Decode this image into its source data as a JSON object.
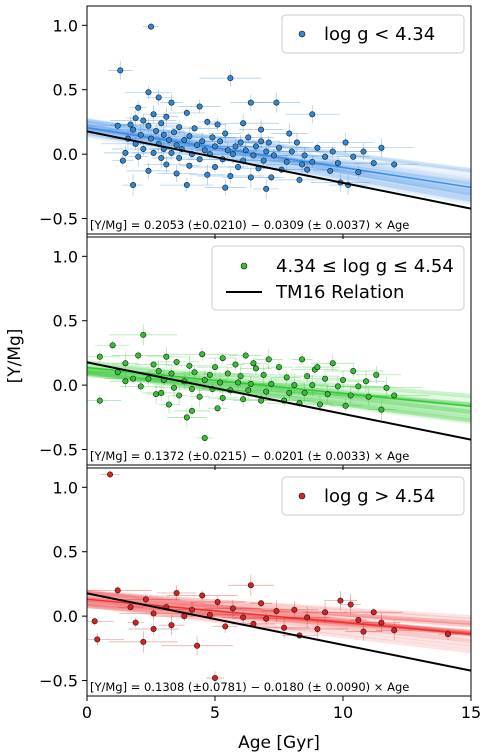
{
  "chart_data": {
    "type": "scatter",
    "xlabel": "Age [Gyr]",
    "ylabel": "[Y/Mg]",
    "xlim": [
      0,
      15
    ],
    "ylim": [
      -0.62,
      1.15
    ],
    "xticks": [
      "0",
      "5",
      "10",
      "15"
    ],
    "yticks": [
      "−0.5",
      "0.0",
      "0.5",
      "1.0"
    ],
    "ytick_values": [
      -0.5,
      0,
      0.5,
      1.0
    ],
    "xtick_values": [
      0,
      5,
      10,
      15
    ],
    "reference_relation": {
      "name": "TM16 Relation",
      "intercept": 0.177,
      "slope": -0.04,
      "color": "#000000"
    },
    "panels": [
      {
        "legend_label": "log g < 4.34",
        "legend_has_line": false,
        "color": "#2f87d8",
        "band_color": "#3a8ee6",
        "fit": {
          "intercept": 0.2053,
          "slope": -0.0309
        },
        "equation": "[Y/Mg] = 0.2053 (±0.0210) − 0.0309 (± 0.0037) × Age",
        "points": [
          [
            2.5,
            0.99
          ],
          [
            1.3,
            0.65
          ],
          [
            5.6,
            0.59
          ],
          [
            2.4,
            0.48
          ],
          [
            2.8,
            0.44
          ],
          [
            7.4,
            0.4
          ],
          [
            6.4,
            0.4
          ],
          [
            3.3,
            0.4
          ],
          [
            4.4,
            0.37
          ],
          [
            2.0,
            0.36
          ],
          [
            3.9,
            0.32
          ],
          [
            8.8,
            0.31
          ],
          [
            2.6,
            0.31
          ],
          [
            3.1,
            0.29
          ],
          [
            1.9,
            0.28
          ],
          [
            2.2,
            0.26
          ],
          [
            4.7,
            0.25
          ],
          [
            6.1,
            0.24
          ],
          [
            2.9,
            0.24
          ],
          [
            5.1,
            0.23
          ],
          [
            1.7,
            0.23
          ],
          [
            2.4,
            0.22
          ],
          [
            3.6,
            0.21
          ],
          [
            4.2,
            0.2
          ],
          [
            6.8,
            0.19
          ],
          [
            1.8,
            0.19
          ],
          [
            2.7,
            0.18
          ],
          [
            3.4,
            0.17
          ],
          [
            5.4,
            0.16
          ],
          [
            7.9,
            0.16
          ],
          [
            2.1,
            0.15
          ],
          [
            3.0,
            0.15
          ],
          [
            4.0,
            0.14
          ],
          [
            4.9,
            0.13
          ],
          [
            6.3,
            0.13
          ],
          [
            1.6,
            0.12
          ],
          [
            2.5,
            0.12
          ],
          [
            3.2,
            0.11
          ],
          [
            3.8,
            0.11
          ],
          [
            4.5,
            0.1
          ],
          [
            5.2,
            0.1
          ],
          [
            6.0,
            0.09
          ],
          [
            7.1,
            0.09
          ],
          [
            8.2,
            0.09
          ],
          [
            10.1,
            0.09
          ],
          [
            1.9,
            0.08
          ],
          [
            2.8,
            0.08
          ],
          [
            3.5,
            0.07
          ],
          [
            4.3,
            0.07
          ],
          [
            5.0,
            0.06
          ],
          [
            5.8,
            0.06
          ],
          [
            6.6,
            0.06
          ],
          [
            7.5,
            0.05
          ],
          [
            9.0,
            0.05
          ],
          [
            11.5,
            0.05
          ],
          [
            2.2,
            0.04
          ],
          [
            3.0,
            0.04
          ],
          [
            3.7,
            0.04
          ],
          [
            4.6,
            0.03
          ],
          [
            5.5,
            0.03
          ],
          [
            6.2,
            0.03
          ],
          [
            7.0,
            0.02
          ],
          [
            8.0,
            0.02
          ],
          [
            9.6,
            0.02
          ],
          [
            10.8,
            0.02
          ],
          [
            1.5,
            0.01
          ],
          [
            2.6,
            0.01
          ],
          [
            3.3,
            0.01
          ],
          [
            4.1,
            0.0
          ],
          [
            4.8,
            0.0
          ],
          [
            5.7,
            0.0
          ],
          [
            6.5,
            -0.01
          ],
          [
            7.3,
            -0.01
          ],
          [
            8.5,
            -0.01
          ],
          [
            9.3,
            -0.02
          ],
          [
            10.4,
            -0.02
          ],
          [
            2.0,
            -0.02
          ],
          [
            2.9,
            -0.03
          ],
          [
            3.6,
            -0.03
          ],
          [
            4.4,
            -0.04
          ],
          [
            5.3,
            -0.04
          ],
          [
            6.1,
            -0.05
          ],
          [
            6.9,
            -0.05
          ],
          [
            7.8,
            -0.06
          ],
          [
            8.8,
            -0.06
          ],
          [
            9.8,
            -0.07
          ],
          [
            11.2,
            -0.07
          ],
          [
            12.0,
            -0.08
          ],
          [
            3.1,
            -0.08
          ],
          [
            4.0,
            -0.09
          ],
          [
            5.0,
            -0.1
          ],
          [
            5.9,
            -0.1
          ],
          [
            6.7,
            -0.11
          ],
          [
            7.6,
            -0.12
          ],
          [
            8.6,
            -0.12
          ],
          [
            9.5,
            -0.13
          ],
          [
            10.6,
            -0.14
          ],
          [
            2.4,
            -0.13
          ],
          [
            3.5,
            -0.15
          ],
          [
            4.7,
            -0.16
          ],
          [
            5.6,
            -0.17
          ],
          [
            6.4,
            -0.18
          ],
          [
            7.2,
            -0.18
          ],
          [
            8.3,
            -0.2
          ],
          [
            9.9,
            -0.22
          ],
          [
            1.8,
            -0.24
          ],
          [
            3.9,
            -0.24
          ],
          [
            5.4,
            -0.26
          ],
          [
            7.0,
            -0.27
          ],
          [
            10.2,
            -0.24
          ],
          [
            1.2,
            0.22
          ],
          [
            1.4,
            -0.05
          ],
          [
            6.8,
            0.1
          ],
          [
            8.4,
            -0.08
          ]
        ]
      },
      {
        "legend_label": "4.34 ≤ log g ≤ 4.54",
        "legend_line_label": "TM16 Relation",
        "legend_has_line": true,
        "color": "#33c033",
        "band_color": "#2ecc2e",
        "fit": {
          "intercept": 0.1372,
          "slope": -0.0201
        },
        "equation": "[Y/Mg] = 0.1372 (±0.0215) − 0.0201 (± 0.0033) × Age",
        "points": [
          [
            2.2,
            0.39
          ],
          [
            1.0,
            0.31
          ],
          [
            0.5,
            0.22
          ],
          [
            2.0,
            0.23
          ],
          [
            3.1,
            0.22
          ],
          [
            4.5,
            0.24
          ],
          [
            5.3,
            0.21
          ],
          [
            6.2,
            0.23
          ],
          [
            7.1,
            0.2
          ],
          [
            8.4,
            0.2
          ],
          [
            9.6,
            0.17
          ],
          [
            1.5,
            0.17
          ],
          [
            2.6,
            0.16
          ],
          [
            3.5,
            0.18
          ],
          [
            4.0,
            0.15
          ],
          [
            5.0,
            0.14
          ],
          [
            5.8,
            0.16
          ],
          [
            6.6,
            0.13
          ],
          [
            7.5,
            0.14
          ],
          [
            8.9,
            0.12
          ],
          [
            10.4,
            0.11
          ],
          [
            11.3,
            0.08
          ],
          [
            1.2,
            0.1
          ],
          [
            2.8,
            0.11
          ],
          [
            3.3,
            0.09
          ],
          [
            4.2,
            0.1
          ],
          [
            4.8,
            0.08
          ],
          [
            5.5,
            0.09
          ],
          [
            6.0,
            0.07
          ],
          [
            6.9,
            0.08
          ],
          [
            7.8,
            0.06
          ],
          [
            8.6,
            0.07
          ],
          [
            9.3,
            0.05
          ],
          [
            10.0,
            0.04
          ],
          [
            10.9,
            0.03
          ],
          [
            1.8,
            0.05
          ],
          [
            2.4,
            0.05
          ],
          [
            3.0,
            0.04
          ],
          [
            3.8,
            0.03
          ],
          [
            4.6,
            0.04
          ],
          [
            5.2,
            0.02
          ],
          [
            5.9,
            0.02
          ],
          [
            6.4,
            0.01
          ],
          [
            7.2,
            0.01
          ],
          [
            8.1,
            0.0
          ],
          [
            8.8,
            0.0
          ],
          [
            9.8,
            -0.01
          ],
          [
            10.6,
            -0.01
          ],
          [
            11.7,
            -0.02
          ],
          [
            2.1,
            -0.01
          ],
          [
            3.4,
            -0.02
          ],
          [
            4.1,
            -0.03
          ],
          [
            4.9,
            -0.03
          ],
          [
            5.6,
            -0.04
          ],
          [
            6.3,
            -0.04
          ],
          [
            7.0,
            -0.05
          ],
          [
            7.9,
            -0.06
          ],
          [
            8.5,
            -0.06
          ],
          [
            9.4,
            -0.07
          ],
          [
            10.3,
            -0.08
          ],
          [
            11.0,
            -0.09
          ],
          [
            12.0,
            -0.08
          ],
          [
            2.7,
            -0.07
          ],
          [
            3.6,
            -0.08
          ],
          [
            4.4,
            -0.09
          ],
          [
            5.3,
            -0.1
          ],
          [
            6.1,
            -0.11
          ],
          [
            6.8,
            -0.12
          ],
          [
            7.7,
            -0.12
          ],
          [
            8.3,
            -0.14
          ],
          [
            9.1,
            -0.15
          ],
          [
            10.1,
            -0.16
          ],
          [
            11.5,
            -0.19
          ],
          [
            0.5,
            -0.12
          ],
          [
            3.2,
            -0.15
          ],
          [
            3.9,
            -0.25
          ],
          [
            5.1,
            -0.18
          ],
          [
            4.1,
            -0.2
          ],
          [
            2.9,
            -0.06
          ],
          [
            4.6,
            -0.41
          ],
          [
            1.5,
            0.03
          ],
          [
            6.5,
            0.17
          ],
          [
            9.0,
            0.14
          ]
        ]
      },
      {
        "legend_label": "log g > 4.54",
        "legend_has_line": false,
        "color": "#d92020",
        "band_color": "#f03030",
        "fit": {
          "intercept": 0.1308,
          "slope": -0.018
        },
        "equation": "[Y/Mg] = 0.1308 (±0.0781) − 0.0180 (± 0.0090) × Age",
        "points": [
          [
            0.9,
            1.1
          ],
          [
            6.4,
            0.24
          ],
          [
            1.2,
            0.2
          ],
          [
            3.5,
            0.18
          ],
          [
            4.5,
            0.16
          ],
          [
            2.3,
            0.13
          ],
          [
            5.1,
            0.11
          ],
          [
            6.8,
            0.1
          ],
          [
            9.9,
            0.12
          ],
          [
            10.3,
            0.09
          ],
          [
            1.7,
            0.07
          ],
          [
            3.1,
            0.07
          ],
          [
            4.1,
            0.05
          ],
          [
            5.7,
            0.06
          ],
          [
            7.4,
            0.04
          ],
          [
            8.1,
            0.05
          ],
          [
            9.3,
            0.03
          ],
          [
            11.2,
            0.03
          ],
          [
            2.6,
            0.02
          ],
          [
            3.8,
            0.0
          ],
          [
            4.8,
            0.01
          ],
          [
            6.1,
            -0.01
          ],
          [
            7.0,
            -0.02
          ],
          [
            8.6,
            -0.01
          ],
          [
            10.6,
            -0.03
          ],
          [
            11.5,
            -0.05
          ],
          [
            1.9,
            -0.05
          ],
          [
            3.3,
            -0.07
          ],
          [
            5.4,
            -0.08
          ],
          [
            7.7,
            -0.09
          ],
          [
            9.0,
            -0.1
          ],
          [
            12.0,
            -0.11
          ],
          [
            14.1,
            -0.14
          ],
          [
            0.3,
            -0.04
          ],
          [
            0.4,
            -0.18
          ],
          [
            2.2,
            -0.2
          ],
          [
            4.3,
            -0.23
          ],
          [
            5.0,
            -0.48
          ],
          [
            2.6,
            -0.1
          ],
          [
            6.5,
            -0.06
          ],
          [
            8.3,
            -0.15
          ],
          [
            10.8,
            -0.12
          ]
        ]
      }
    ]
  }
}
